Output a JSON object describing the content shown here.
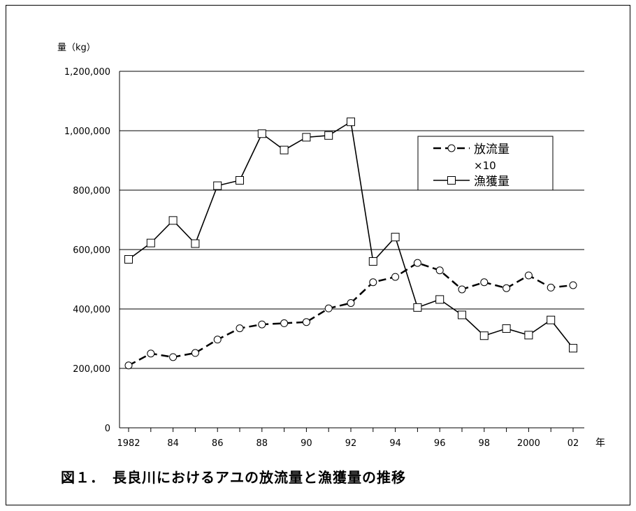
{
  "chart_data": {
    "type": "line",
    "ylabel": "量（kg）",
    "xlabel": "年",
    "ylim": [
      0,
      1200000
    ],
    "yticks": [
      "0",
      "200,000",
      "400,000",
      "600,000",
      "800,000",
      "1,000,000",
      "1,200,000"
    ],
    "ytick_values": [
      0,
      200000,
      400000,
      600000,
      800000,
      1000000,
      1200000
    ],
    "x": [
      1982,
      1983,
      1984,
      1985,
      1986,
      1987,
      1988,
      1989,
      1990,
      1991,
      1992,
      1993,
      1994,
      1995,
      1996,
      1997,
      1998,
      1999,
      2000,
      2001,
      2002
    ],
    "xticks": [
      "1982",
      "84",
      "86",
      "88",
      "90",
      "92",
      "94",
      "96",
      "98",
      "2000",
      "02"
    ],
    "xtick_values": [
      1982,
      1984,
      1986,
      1988,
      1990,
      1992,
      1994,
      1996,
      1998,
      2000,
      2002
    ],
    "grid": true,
    "legend_position": "right",
    "series": [
      {
        "name": "放流量 ×10",
        "style": "dashed",
        "marker": "circle",
        "values": [
          210000,
          250000,
          238000,
          252000,
          297000,
          335000,
          348000,
          352000,
          356000,
          402000,
          420000,
          490000,
          508000,
          555000,
          530000,
          466000,
          490000,
          470000,
          513000,
          472000,
          480000
        ]
      },
      {
        "name": "漁獲量",
        "style": "solid",
        "marker": "square",
        "values": [
          567000,
          622000,
          698000,
          620000,
          815000,
          833000,
          990000,
          935000,
          978000,
          984000,
          1030000,
          560000,
          642000,
          405000,
          432000,
          380000,
          310000,
          334000,
          312000,
          363000,
          268000
        ]
      }
    ]
  },
  "caption": "図１．　長良川におけるアユの放流量と漁獲量の推移",
  "colors": {
    "line": "#000000",
    "background": "#ffffff"
  }
}
